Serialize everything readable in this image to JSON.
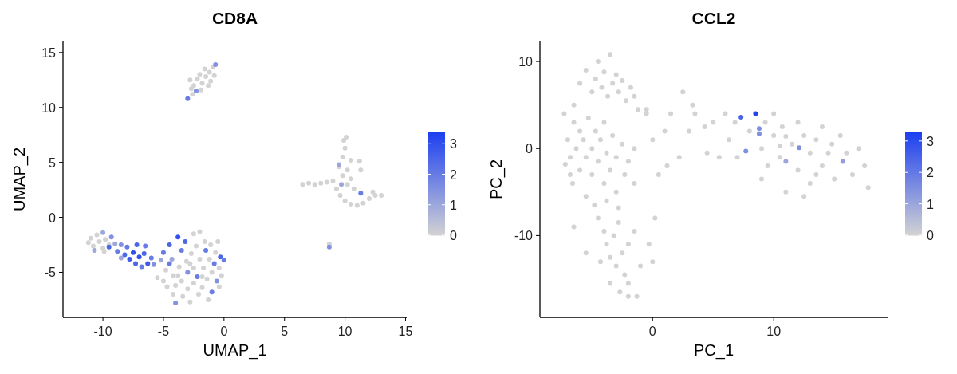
{
  "chart_data": [
    {
      "type": "scatter",
      "title": "CD8A",
      "xlabel": "UMAP_1",
      "ylabel": "UMAP_2",
      "xlim": [
        -13.3,
        15.1
      ],
      "ylim": [
        -9.1,
        16
      ],
      "xticks": [
        -10,
        -5,
        0,
        5,
        10,
        15
      ],
      "yticks": [
        -5,
        0,
        5,
        10,
        15
      ],
      "clim": [
        0,
        3.4
      ],
      "cticks": [
        0,
        1,
        2,
        3
      ],
      "grid": false,
      "marker": "circle",
      "series": [
        {
          "x": [
            -3,
            -2.6,
            -2.3,
            -2.5,
            -2.2,
            -1.8,
            -1.5,
            -1.2,
            -0.9,
            -0.7,
            -1.3,
            -2.7,
            -1.6,
            -2,
            -0.8,
            -1.1,
            -2.8,
            -1.9,
            6.5,
            7,
            7.5,
            8,
            8.5,
            9,
            9.3,
            9.6,
            10,
            10.5,
            11,
            11.5,
            12,
            12.5,
            13,
            12.3,
            11.3,
            10.8,
            10.2,
            9.8,
            10.2,
            9.5,
            10.5,
            9.8,
            10,
            9.9,
            10.1,
            9.5,
            11.3,
            11.2,
            10.5,
            9.7,
            8.7,
            8.7,
            -11.2,
            -11,
            -10.8,
            -10.5,
            -10.3,
            -10,
            -10,
            -9.8,
            -9.5,
            -9.3,
            -10.7,
            -9.9,
            -9.5,
            -9,
            -8.8,
            -8.5,
            -8.2,
            -8,
            -7.8,
            -7.5,
            -7.3,
            -7,
            -6.8,
            -6.6,
            -6.3,
            -6,
            -7.2,
            -6.5,
            -5.8,
            -8.5,
            -5.5,
            -5,
            -5,
            -4.8,
            -4.7,
            -4.5,
            -4.3,
            -4.2,
            -4.2,
            -4,
            -4,
            -3.8,
            -3.7,
            -3.5,
            -3.5,
            -3.4,
            -3.2,
            -3.1,
            -3,
            -3,
            -2.8,
            -2.7,
            -2.5,
            -2.5,
            -2.5,
            -2.3,
            -2.2,
            -2.1,
            -2,
            -2,
            -1.8,
            -1.7,
            -1.6,
            -1.5,
            -1.4,
            -1.3,
            -1.2,
            -1.1,
            -1,
            -1,
            -0.8,
            -0.7,
            -0.6,
            -0.5,
            -0.4,
            -0.3,
            -0.2,
            0,
            -0.4,
            -1.8,
            -2.8,
            -3.8,
            -4.5,
            -5.2
          ],
          "values": [
            10.8,
            11.2,
            11.5,
            12,
            12.6,
            12.2,
            12.8,
            13.2,
            13.7,
            13.9,
            12,
            11.7,
            13.5,
            13,
            12.9,
            12.4,
            12.5,
            11.6,
            3,
            3.1,
            3,
            3.1,
            3.2,
            3.3,
            2.6,
            2,
            1.5,
            1.2,
            1.1,
            1.3,
            1.7,
            2,
            2,
            2.3,
            2.2,
            2.6,
            3,
            3.8,
            4.3,
            4.6,
            5.2,
            5.5,
            6.3,
            7,
            7.3,
            4.8,
            4.3,
            5.1,
            3.5,
            3,
            -2.4,
            -2.7,
            -2.3,
            -1.9,
            -2.6,
            -1.6,
            -2.2,
            -2.8,
            -1.4,
            -2,
            -2.5,
            -1.8,
            -3,
            -3.1,
            -2.7,
            -2.4,
            -3.1,
            -2.5,
            -3.4,
            -2.7,
            -3.8,
            -3.2,
            -4.2,
            -3.6,
            -4.5,
            -3.3,
            -4.2,
            -3.7,
            -2.5,
            -2.6,
            -4.3,
            -3.7,
            -5.5,
            -5.8,
            -3.2,
            -4.8,
            -6.3,
            -2.5,
            -3.8,
            -5.3,
            -7,
            -6.2,
            -7.8,
            -1.8,
            -4.5,
            -3,
            -5.8,
            -7.2,
            -2.2,
            -4,
            -6.5,
            -5,
            -7.7,
            -3.3,
            -1.5,
            -4.6,
            -6,
            -2.6,
            -5.4,
            -7,
            -3.8,
            -1.3,
            -6.4,
            -4.6,
            -2.2,
            -3,
            -5.6,
            -7.5,
            -3.8,
            -2.5,
            -5,
            -6.8,
            -4.2,
            -3.2,
            -5.8,
            -2.2,
            -4.6,
            -3.6,
            -5.3,
            -3.9,
            -6.3,
            -5.4,
            -4.2,
            -5.3,
            -4.2,
            -3.9
          ],
          "cvalues": [
            2,
            0,
            1.5,
            0,
            0,
            0,
            0,
            0,
            0,
            1.5,
            0,
            0,
            0,
            0,
            0,
            0,
            0,
            0,
            0,
            0,
            0,
            0,
            0,
            0,
            0,
            0,
            0,
            0,
            0,
            0,
            0,
            0,
            0,
            0,
            2,
            0,
            0,
            0,
            0,
            0,
            0,
            0,
            0,
            0,
            0,
            1,
            0,
            0,
            0,
            1,
            0,
            1.5,
            0,
            0,
            0,
            0,
            0,
            0,
            1,
            0,
            0,
            1.5,
            1,
            0,
            2.5,
            1,
            2,
            1.5,
            2.5,
            2,
            2.8,
            3,
            2.5,
            3,
            2,
            2.5,
            2.8,
            2,
            2.5,
            2,
            1.5,
            1,
            0,
            0,
            2,
            0,
            0,
            2.5,
            1,
            0,
            0,
            0,
            1.5,
            3,
            0,
            2,
            0,
            0,
            2.5,
            0,
            0,
            1.5,
            0,
            0,
            0,
            0,
            0,
            0,
            2,
            0,
            0,
            0,
            0,
            0,
            0,
            2,
            0,
            0,
            0,
            0,
            0,
            2,
            2,
            0,
            1.5,
            0,
            0,
            2.5,
            0,
            2,
            0,
            0,
            0,
            0,
            2,
            1
          ]
        }
      ]
    },
    {
      "type": "scatter",
      "title": "CCL2",
      "xlabel": "PC_1",
      "ylabel": "PC_2",
      "xlim": [
        -9.3,
        19.4
      ],
      "ylim": [
        -19.4,
        12.3
      ],
      "xticks": [
        0,
        10
      ],
      "yticks": [
        -10,
        0,
        10
      ],
      "clim": [
        0,
        3.3
      ],
      "cticks": [
        0,
        1,
        2,
        3
      ],
      "grid": false,
      "marker": "circle",
      "series": [
        {
          "x": [
            -7,
            -6.8,
            -6.5,
            -6.3,
            -6,
            -6,
            -5.7,
            -5.5,
            -5.3,
            -5,
            -5,
            -4.7,
            -4.5,
            -4.3,
            -4,
            -4,
            -3.8,
            -3.5,
            -3.3,
            -3,
            -3,
            -2.5,
            -2.3,
            -2,
            -7.2,
            -6.6,
            -5.5,
            -4.8,
            -3.8,
            -2.8,
            -1.5,
            -1.5,
            -7.3,
            -6.8,
            -5.5,
            -5,
            -4.7,
            -4.5,
            -4.2,
            -4,
            -3.7,
            -3.5,
            -3.3,
            -3,
            -2.8,
            -2.5,
            -2.2,
            -1.8,
            -1.5,
            -1.2,
            -0.5,
            -6,
            -6.5,
            -4.5,
            -4,
            -3.8,
            -3.5,
            -3.2,
            -3,
            -2.8,
            -2.5,
            -2.3,
            -2,
            -4.3,
            -3.5,
            -2.7,
            -2,
            -1.3,
            -1,
            -1.5,
            -6.5,
            -5.5,
            -2,
            -0.3,
            0.2,
            0,
            1,
            1.5,
            1.2,
            0.5,
            2.2,
            3,
            3.5,
            4.3,
            4.5,
            5.5,
            0,
            -0.5,
            2.5,
            3.3,
            5,
            6,
            6.3,
            6.8,
            7,
            7.3,
            7.7,
            8,
            8.5,
            8.8,
            8.8,
            9,
            9.3,
            9.5,
            10,
            10,
            10.5,
            10.7,
            11,
            11,
            11.5,
            12,
            12,
            12.1,
            12.5,
            13,
            13,
            13.5,
            14,
            14,
            14.5,
            15,
            15.5,
            15.7,
            16,
            16.5,
            17,
            17.5,
            17.8,
            11,
            12.5,
            9,
            13.5,
            10.5,
            14.8
          ],
          "values": [
            1,
            -1,
            3,
            0,
            2,
            -2.5,
            1,
            -1,
            3.5,
            0,
            -3,
            2,
            -1.5,
            1,
            -4,
            3,
            -0.5,
            -2.5,
            1.5,
            -1,
            -5,
            0.5,
            -3,
            -1.5,
            -1.8,
            -4,
            -5.5,
            -6.5,
            -6,
            -6.8,
            0,
            -4,
            4,
            -3,
            9,
            6.5,
            8,
            10,
            7,
            8.8,
            6,
            10.8,
            7.5,
            8.5,
            6.5,
            7.8,
            5.5,
            7,
            6,
            4.5,
            4,
            7.5,
            5,
            -8,
            -9.5,
            -11,
            -12.5,
            -10,
            -13.5,
            -8.5,
            -12,
            -14.5,
            -11,
            -13,
            -15.5,
            -16.5,
            -17,
            -17,
            -13.5,
            -9.5,
            -9,
            -12,
            -15.5,
            -11,
            -8,
            -13,
            2,
            4,
            -2,
            -3,
            -1,
            2,
            4,
            2.5,
            -0.5,
            -1,
            1,
            4.5,
            6.5,
            5,
            3,
            4,
            1,
            3,
            -1,
            3.6,
            -0.3,
            2,
            4,
            2.3,
            1.7,
            0,
            3,
            -2,
            1.5,
            4,
            -1,
            2.5,
            1.4,
            -1.5,
            0.5,
            -2.5,
            3,
            0.1,
            1.5,
            -0.5,
            -4,
            1,
            -2,
            2.5,
            -0.5,
            -3.5,
            1.5,
            -1.5,
            -0.5,
            -3,
            0,
            -2,
            -4.5,
            -5,
            -5.5,
            -3.5,
            -3,
            0.3,
            0.5
          ],
          "cvalues": [
            0,
            0,
            0,
            0,
            0,
            0,
            0,
            0,
            0,
            0,
            0,
            0,
            0,
            0,
            0,
            0,
            0,
            0,
            0,
            0,
            0,
            0,
            0,
            0,
            0,
            0,
            0,
            0,
            0,
            0,
            0,
            0,
            0,
            0,
            0,
            0,
            0,
            0,
            0,
            0,
            0,
            0,
            0,
            0,
            0,
            0,
            0,
            0,
            0,
            0,
            0,
            0,
            0,
            0,
            0,
            0,
            0,
            0,
            0,
            0,
            0,
            0,
            0,
            0,
            0,
            0,
            0,
            0,
            0,
            0,
            0,
            0,
            0,
            0,
            0,
            0,
            0,
            0,
            0,
            0,
            0,
            0,
            0,
            0,
            0,
            0,
            0,
            0,
            0,
            0,
            0,
            0,
            0,
            0,
            0,
            2.5,
            1.5,
            0,
            3.2,
            1.5,
            1.5,
            0,
            0,
            0,
            0,
            0,
            0,
            0,
            0,
            1,
            0,
            0,
            0,
            1.5,
            0,
            0,
            0,
            0,
            0,
            0,
            0,
            0,
            0,
            1.2,
            0,
            0,
            0,
            0,
            0,
            0,
            0,
            0,
            0,
            0,
            0
          ]
        }
      ]
    }
  ]
}
